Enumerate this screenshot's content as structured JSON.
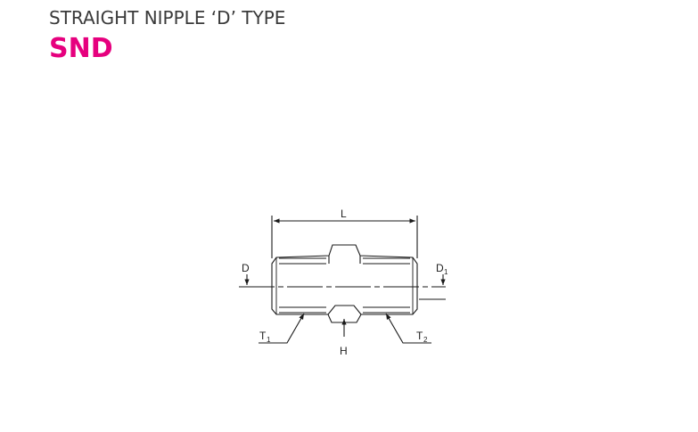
{
  "header": {
    "title": "STRAIGHT NIPPLE ‘D’ TYPE",
    "code": "SND"
  },
  "drawing": {
    "labels": {
      "length": "L",
      "left_diameter": "D",
      "right_diameter": "D",
      "right_diameter_subscript": "1",
      "left_thread": "T",
      "left_thread_subscript": "1",
      "right_thread": "T",
      "right_thread_subscript": "2",
      "hex": "H"
    },
    "colors": {
      "title": "#3a3a3a",
      "code": "#e6007e",
      "line": "#1a1a1a"
    }
  }
}
